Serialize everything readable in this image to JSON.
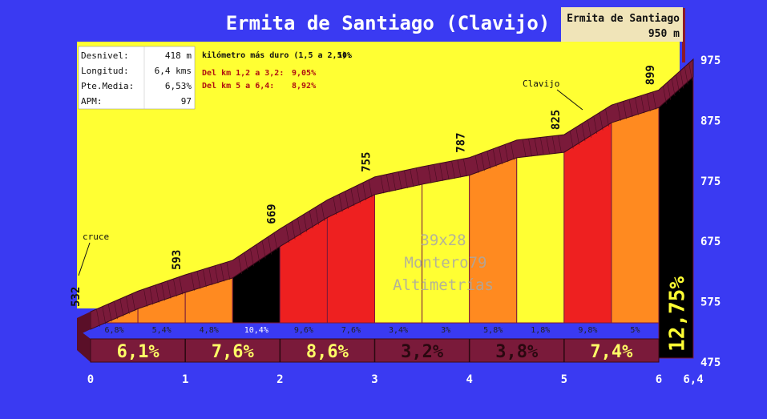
{
  "title": "Ermita de Santiago (Clavijo)",
  "summit": {
    "name": "Ermita de Santiago",
    "altitude": "950 m"
  },
  "stats": [
    {
      "label": "Desnivel:",
      "value": "418 m"
    },
    {
      "label": "Longitud:",
      "value": "6,4 kms"
    },
    {
      "label": "Pte.Media:",
      "value": "6,53%"
    },
    {
      "label": "APM:",
      "value": "97"
    }
  ],
  "hardest": {
    "km_line": "kilómetro más duro (1,5 a 2,5):",
    "km_value": "10%",
    "seg1": "Del km 1,2  a   3,2:",
    "seg1_value": "9,05%",
    "seg2": "Del km  5  a   6,4:",
    "seg2_value": "8,92%"
  },
  "watermark": [
    "39x28",
    "Montero79",
    "Altimetrías"
  ],
  "annotations": {
    "start": "cruce",
    "peak": "Clavijo"
  },
  "colors": {
    "background": "#3a3af2",
    "panel": "#ffff33",
    "road": "#7a1a3a",
    "label_box": "#f0e4b8",
    "summit_pole": "#8b1a2a",
    "grade_black": "#000000",
    "grade_red": "#ee2020",
    "grade_orange": "#ff8a20",
    "grade_yellow": "#ffff33",
    "grade_band": "#7a1a3a",
    "grade_band_text": "#ffff66"
  },
  "chart_data": {
    "type": "area",
    "title": "Ermita de Santiago (Clavijo)",
    "xlabel": "",
    "ylabel": "",
    "xlim": [
      0,
      6.4
    ],
    "ylim": [
      475,
      975
    ],
    "x_ticks": [
      "0",
      "1",
      "2",
      "3",
      "4",
      "5",
      "6",
      "6,4"
    ],
    "x_tick_values": [
      0,
      1,
      2,
      3,
      4,
      5,
      6,
      6.4
    ],
    "y_ticks": [
      "975",
      "875",
      "775",
      "675",
      "575",
      "475"
    ],
    "y_tick_values": [
      975,
      875,
      775,
      675,
      575,
      475
    ],
    "profile": [
      {
        "km": 0,
        "alt": 532,
        "label": "532"
      },
      {
        "km": 0.5,
        "alt": 566,
        "label": ""
      },
      {
        "km": 1,
        "alt": 593,
        "label": "593"
      },
      {
        "km": 1.5,
        "alt": 617,
        "label": ""
      },
      {
        "km": 2,
        "alt": 669,
        "label": "669"
      },
      {
        "km": 2.5,
        "alt": 717,
        "label": ""
      },
      {
        "km": 3,
        "alt": 755,
        "label": "755"
      },
      {
        "km": 3.5,
        "alt": 772,
        "label": ""
      },
      {
        "km": 4,
        "alt": 787,
        "label": "787"
      },
      {
        "km": 4.5,
        "alt": 816,
        "label": ""
      },
      {
        "km": 5,
        "alt": 825,
        "label": "825"
      },
      {
        "km": 5.5,
        "alt": 874,
        "label": ""
      },
      {
        "km": 6,
        "alt": 899,
        "label": "899"
      },
      {
        "km": 6.4,
        "alt": 950,
        "label": ""
      }
    ],
    "segments": [
      {
        "from": 0,
        "to": 0.5,
        "grade": "6,8%",
        "color": "orange"
      },
      {
        "from": 0.5,
        "to": 1,
        "grade": "5,4%",
        "color": "orange"
      },
      {
        "from": 1,
        "to": 1.5,
        "grade": "4,8%",
        "color": "orange"
      },
      {
        "from": 1.5,
        "to": 2,
        "grade": "10,4%",
        "color": "black"
      },
      {
        "from": 2,
        "to": 2.5,
        "grade": "9,6%",
        "color": "red"
      },
      {
        "from": 2.5,
        "to": 3,
        "grade": "7,6%",
        "color": "red"
      },
      {
        "from": 3,
        "to": 3.5,
        "grade": "3,4%",
        "color": "yellow"
      },
      {
        "from": 3.5,
        "to": 4,
        "grade": "3%",
        "color": "yellow"
      },
      {
        "from": 4,
        "to": 4.5,
        "grade": "5,8%",
        "color": "orange"
      },
      {
        "from": 4.5,
        "to": 5,
        "grade": "1,8%",
        "color": "yellow"
      },
      {
        "from": 5,
        "to": 5.5,
        "grade": "9,8%",
        "color": "red"
      },
      {
        "from": 5.5,
        "to": 6,
        "grade": "5%",
        "color": "orange"
      },
      {
        "from": 6,
        "to": 6.4,
        "grade": "12,75%",
        "color": "black"
      }
    ],
    "km_grades": [
      {
        "from": 0,
        "to": 1,
        "grade": "6,1%"
      },
      {
        "from": 1,
        "to": 2,
        "grade": "7,6%"
      },
      {
        "from": 2,
        "to": 3,
        "grade": "8,6%"
      },
      {
        "from": 3,
        "to": 4,
        "grade": "3,2%"
      },
      {
        "from": 4,
        "to": 5,
        "grade": "3,8%"
      },
      {
        "from": 5,
        "to": 6,
        "grade": "7,4%"
      }
    ]
  }
}
